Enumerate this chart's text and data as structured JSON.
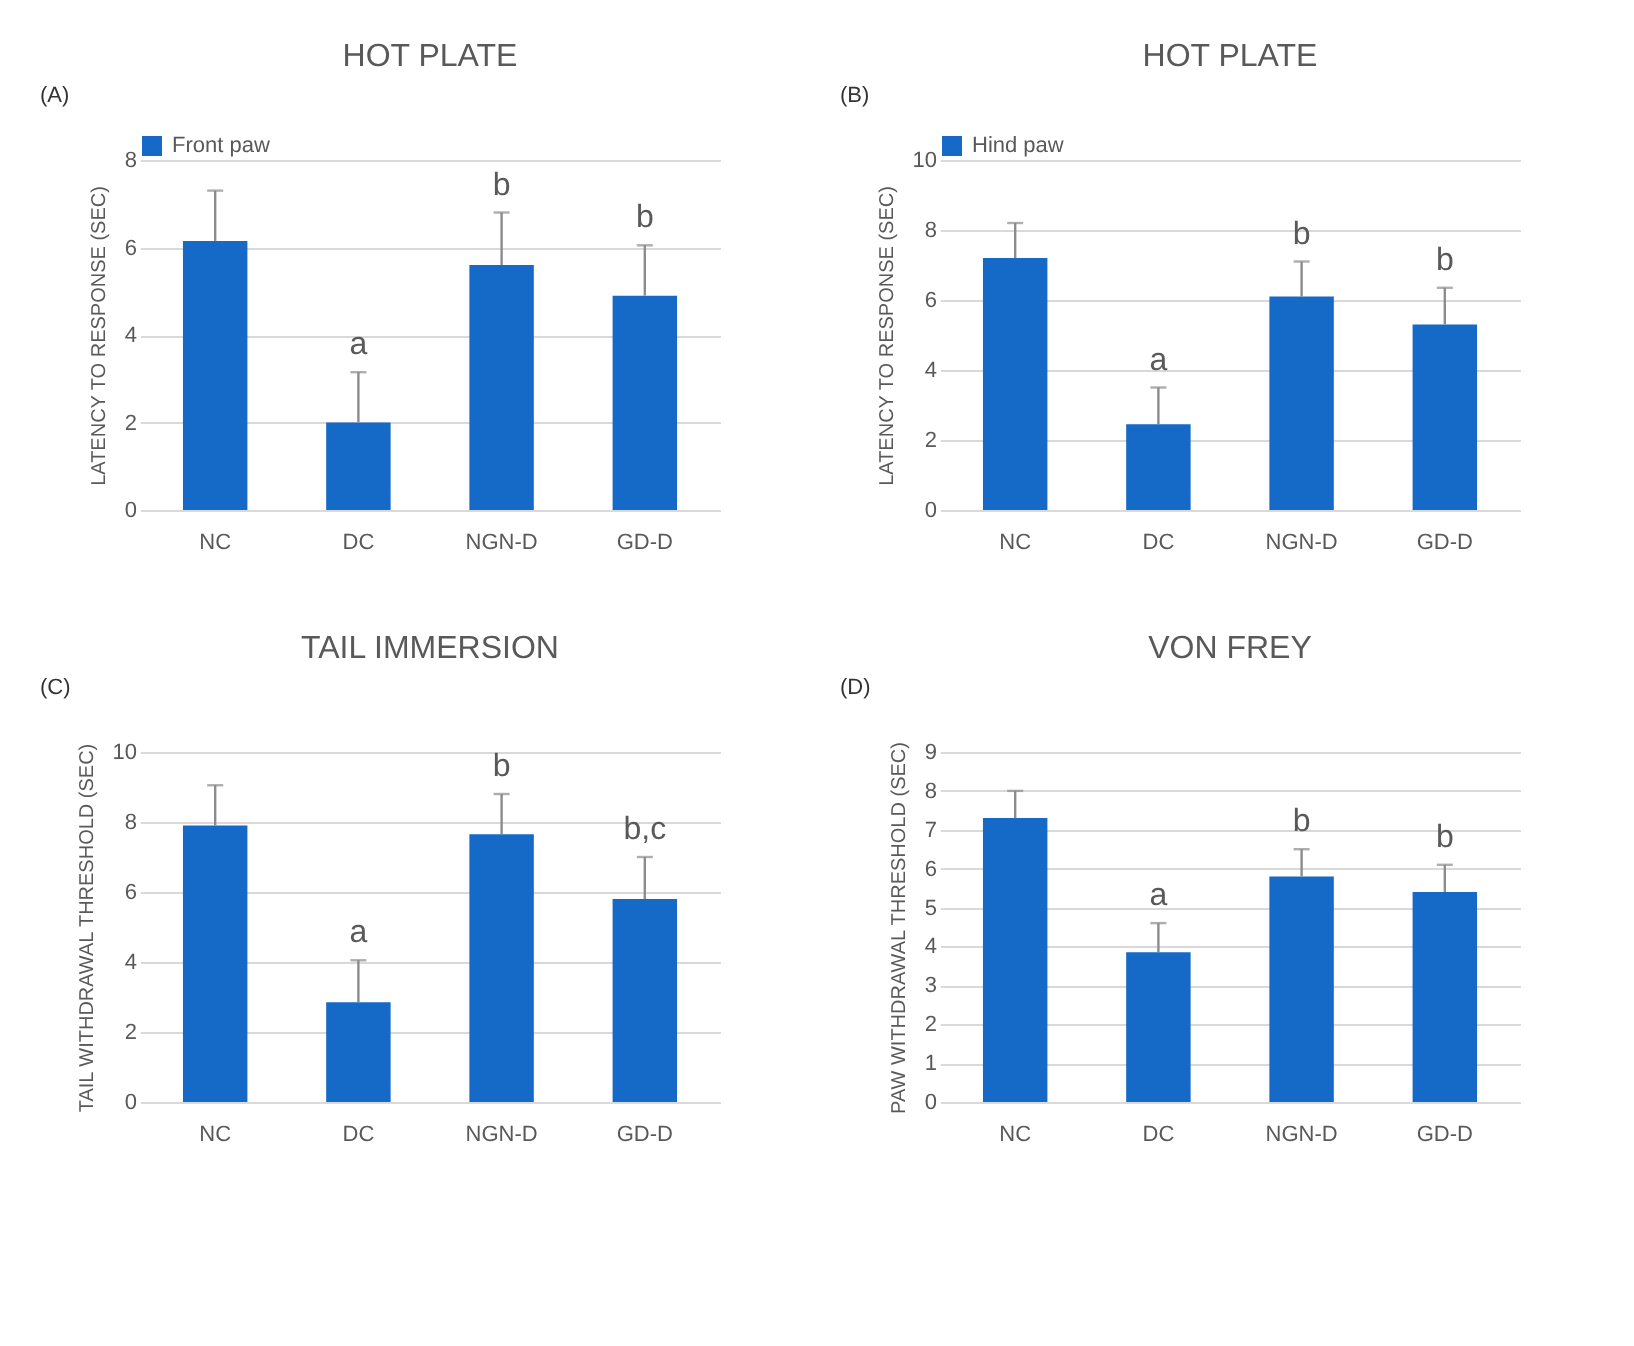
{
  "chart_data": [
    {
      "type": "bar",
      "title": "HOT PLATE",
      "ylabel": "LATENCY TO RESPONSE (SEC)",
      "categories": [
        "NC",
        "DC",
        "NGN-D",
        "GD-D"
      ],
      "series": [
        {
          "name": "Front paw",
          "color": "#1569c7",
          "values": [
            6.15,
            2.0,
            5.6,
            4.9
          ],
          "errors": [
            [
              6.15,
              7.3
            ],
            [
              2.0,
              3.15
            ],
            [
              5.6,
              6.8
            ],
            [
              4.9,
              6.05
            ]
          ]
        }
      ],
      "ylim": [
        0,
        8
      ],
      "yticks": [
        0,
        2,
        4,
        6,
        8
      ],
      "grid": "y",
      "legend": "top",
      "annotations": [
        "(A)",
        {
          "text": "a",
          "x": "DC",
          "y": 3.15
        },
        {
          "text": "b",
          "x": "NGN-D",
          "y": 6.8
        },
        {
          "text": "b",
          "x": "GD-D",
          "y": 6.05
        }
      ]
    },
    {
      "type": "bar",
      "title": "HOT PLATE",
      "ylabel": "LATENCY TO RESPONSE (SEC)",
      "categories": [
        "NC",
        "DC",
        "NGN-D",
        "GD-D"
      ],
      "series": [
        {
          "name": "Hind paw",
          "color": "#1569c7",
          "values": [
            7.2,
            2.45,
            6.1,
            5.3
          ],
          "errors": [
            [
              7.2,
              8.2
            ],
            [
              2.45,
              3.5
            ],
            [
              6.1,
              7.1
            ],
            [
              5.3,
              6.35
            ]
          ]
        }
      ],
      "ylim": [
        0,
        10
      ],
      "yticks": [
        0,
        2,
        4,
        6,
        8,
        10
      ],
      "grid": "y",
      "legend": "top",
      "annotations": [
        "(B)",
        {
          "text": "a",
          "x": "DC",
          "y": 3.5
        },
        {
          "text": "b",
          "x": "NGN-D",
          "y": 7.1
        },
        {
          "text": "b",
          "x": "GD-D",
          "y": 6.35
        }
      ]
    },
    {
      "type": "bar",
      "title": "TAIL IMMERSION",
      "ylabel": "TAIL WITHDRAWAL THRESHOLD (SEC)",
      "categories": [
        "NC",
        "DC",
        "NGN-D",
        "GD-D"
      ],
      "series": [
        {
          "color": "#1569c7",
          "values": [
            7.9,
            2.85,
            7.65,
            5.8
          ],
          "errors": [
            [
              7.9,
              9.05
            ],
            [
              2.85,
              4.05
            ],
            [
              7.65,
              8.8
            ],
            [
              5.8,
              7.0
            ]
          ]
        }
      ],
      "ylim": [
        0,
        10
      ],
      "yticks": [
        0,
        2,
        4,
        6,
        8,
        10
      ],
      "grid": "y",
      "annotations": [
        "(C)",
        {
          "text": "a",
          "x": "DC",
          "y": 4.05
        },
        {
          "text": "b",
          "x": "NGN-D",
          "y": 8.8
        },
        {
          "text": "b,c",
          "x": "GD-D",
          "y": 7.0
        }
      ]
    },
    {
      "type": "bar",
      "title": "VON FREY",
      "ylabel": "PAW WITHDRAWAL THRESHOLD (SEC)",
      "categories": [
        "NC",
        "DC",
        "NGN-D",
        "GD-D"
      ],
      "series": [
        {
          "color": "#1569c7",
          "values": [
            7.3,
            3.85,
            5.8,
            5.4
          ],
          "errors": [
            [
              7.3,
              8.0
            ],
            [
              3.85,
              4.6
            ],
            [
              5.8,
              6.5
            ],
            [
              5.4,
              6.1
            ]
          ]
        }
      ],
      "ylim": [
        0,
        9
      ],
      "yticks": [
        0,
        1,
        2,
        3,
        4,
        5,
        6,
        7,
        8,
        9
      ],
      "grid": "y",
      "annotations": [
        "(D)",
        {
          "text": "a",
          "x": "DC",
          "y": 4.6
        },
        {
          "text": "b",
          "x": "NGN-D",
          "y": 6.5
        },
        {
          "text": "b",
          "x": "GD-D",
          "y": 6.1
        }
      ]
    }
  ]
}
